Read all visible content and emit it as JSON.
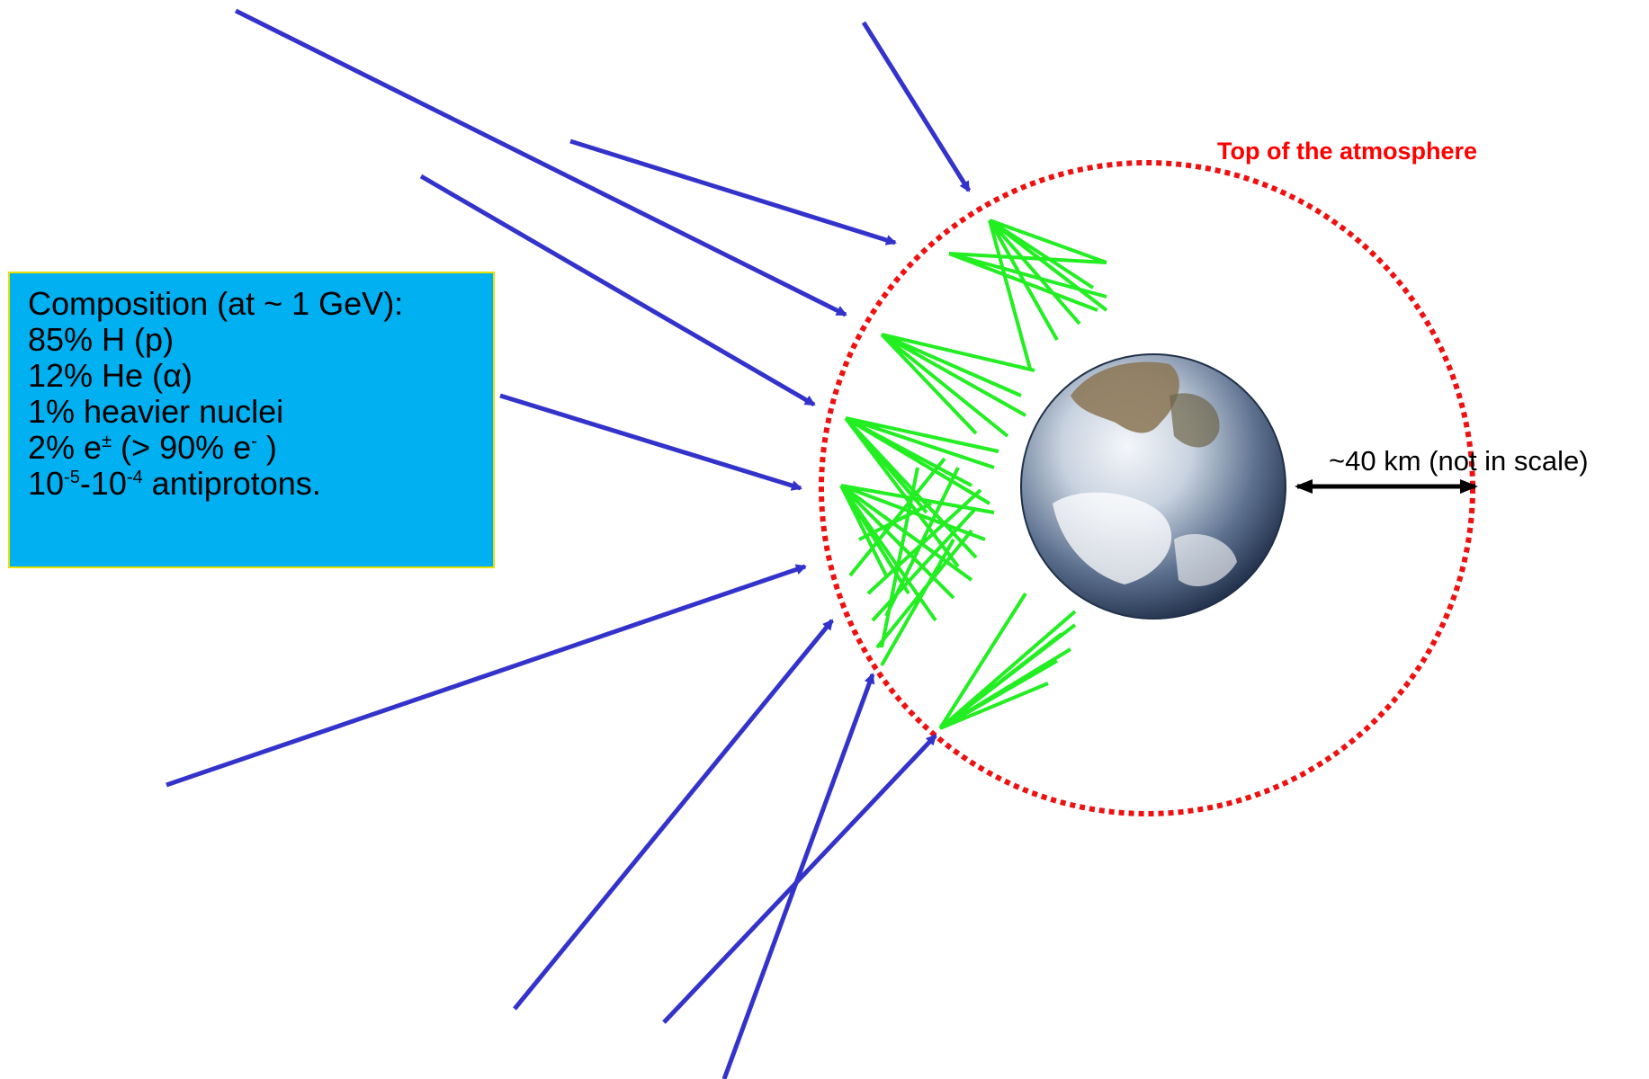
{
  "composition_box": {
    "title": "Composition (at ~ 1 GeV):",
    "lines": [
      "85% H (p)",
      "12% He (α)",
      "1% heavier nuclei"
    ],
    "electron_line": {
      "text": "2% e",
      "sup1": "±",
      "mid": " (> 90% e",
      "sup2": "-",
      "tail": " )"
    },
    "antiproton_line": {
      "a": "10",
      "sup1": "-5",
      "b": "-10",
      "sup2": "-4",
      "c": " antiprotons."
    }
  },
  "atmosphere_label": "Top of the atmosphere",
  "distance_label": "~40 km (not in scale)",
  "colors": {
    "cosmic_ray": "#3333cc",
    "shower": "#22ee22",
    "atmosphere": "#ee1111",
    "box_fill": "#00b0f0",
    "box_border": "#e8e000"
  },
  "icons": [
    "earth-globe-icon",
    "double-arrow-icon"
  ]
}
